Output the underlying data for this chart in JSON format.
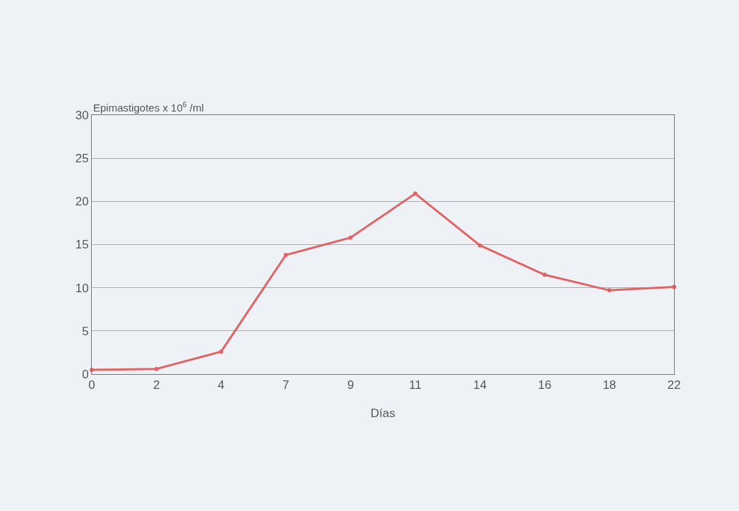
{
  "chart_data": {
    "type": "line",
    "ylabel": "Epimastigotes x 10$^{6}$ /ml",
    "xlabel": "Días",
    "categories": [
      "0",
      "2",
      "4",
      "7",
      "9",
      "11",
      "14",
      "16",
      "18",
      "22"
    ],
    "series": [
      {
        "color": "#e06464",
        "values": [
          0.5,
          0.6,
          2.6,
          13.8,
          15.8,
          20.9,
          14.9,
          11.5,
          9.7,
          10.1
        ]
      }
    ],
    "ylim": [
      0,
      30
    ],
    "yticks": [
      0,
      5,
      10,
      15,
      20,
      25,
      30
    ],
    "grid": "y",
    "marker": "circle",
    "line_style": "solid",
    "legend": false
  }
}
